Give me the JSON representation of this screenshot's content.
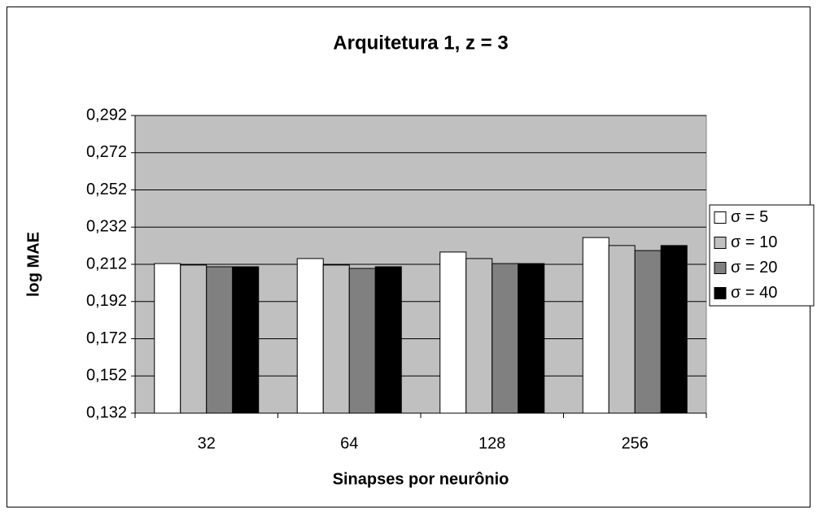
{
  "chart_data": {
    "type": "bar",
    "title": "Arquitetura 1, z = 3",
    "x_label": "Sinapses por neurônio",
    "y_label": "log MAE",
    "categories": [
      "32",
      "64",
      "128",
      "256"
    ],
    "series": [
      {
        "name": "σ = 5",
        "color": "#ffffff",
        "values": [
          0.2124,
          0.2151,
          0.2186,
          0.2264
        ]
      },
      {
        "name": "σ = 10",
        "color": "#c0c0c0",
        "values": [
          0.2116,
          0.2116,
          0.2151,
          0.2221
        ]
      },
      {
        "name": "σ = 20",
        "color": "#808080",
        "values": [
          0.2107,
          0.2098,
          0.2124,
          0.2194
        ]
      },
      {
        "name": "σ = 40",
        "color": "#000000",
        "values": [
          0.2107,
          0.2107,
          0.2124,
          0.2221
        ]
      }
    ],
    "ylim": [
      0.132,
      0.292
    ],
    "yticks": [
      {
        "value": 0.132,
        "label": "0,132"
      },
      {
        "value": 0.152,
        "label": "0,152"
      },
      {
        "value": 0.172,
        "label": "0,172"
      },
      {
        "value": 0.192,
        "label": "0,192"
      },
      {
        "value": 0.212,
        "label": "0,212"
      },
      {
        "value": 0.232,
        "label": "0,232"
      },
      {
        "value": 0.252,
        "label": "0,252"
      },
      {
        "value": 0.272,
        "label": "0,272"
      },
      {
        "value": 0.292,
        "label": "0,292"
      }
    ],
    "grid": true,
    "legend": "right",
    "plot_background": "#c0c0c0"
  }
}
